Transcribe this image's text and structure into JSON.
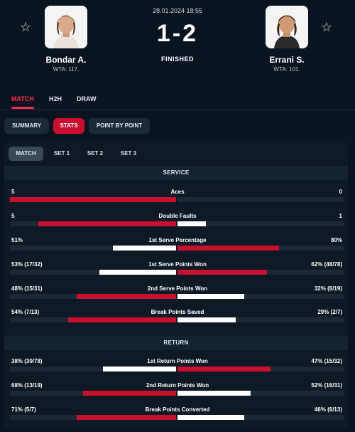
{
  "match": {
    "date": "28.01.2024 18:55",
    "score": "1-2",
    "status": "FINISHED",
    "home": {
      "name": "Bondar A.",
      "rank": "WTA: 117."
    },
    "away": {
      "name": "Errani S.",
      "rank": "WTA: 101."
    }
  },
  "icons": {
    "favorite": "star-outline-icon",
    "star_glyph": "☆"
  },
  "tabs": [
    {
      "label": "MATCH",
      "active": true
    },
    {
      "label": "H2H",
      "active": false
    },
    {
      "label": "DRAW",
      "active": false
    }
  ],
  "subtabs": [
    {
      "label": "SUMMARY",
      "active": false
    },
    {
      "label": "STATS",
      "active": true
    },
    {
      "label": "POINT BY POINT",
      "active": false
    }
  ],
  "settabs": [
    {
      "label": "MATCH",
      "active": true
    },
    {
      "label": "SET 1",
      "active": false
    },
    {
      "label": "SET 2",
      "active": false
    },
    {
      "label": "SET 3",
      "active": false
    }
  ],
  "colors": {
    "accent": "#c8102e",
    "winner_bar": "#c8102e",
    "other_bar": "#ffffff",
    "background": "#0a1420"
  },
  "sections": [
    {
      "title": "SERVICE",
      "stats": [
        {
          "name": "Aces",
          "home": "5",
          "away": "0",
          "home_frac": 1.0,
          "away_frac": 0.0,
          "leader": "home"
        },
        {
          "name": "Double Faults",
          "home": "5",
          "away": "1",
          "home_frac": 0.83,
          "away_frac": 0.17,
          "leader": "home"
        },
        {
          "name": "1st Serve Percentage",
          "home": "51%",
          "away": "80%",
          "home_frac": 0.38,
          "away_frac": 0.61,
          "leader": "away"
        },
        {
          "name": "1st Serve Points Won",
          "home": "53% (17/32)",
          "away": "62% (48/78)",
          "home_frac": 0.46,
          "away_frac": 0.54,
          "leader": "away"
        },
        {
          "name": "2nd Serve Points Won",
          "home": "48% (15/31)",
          "away": "32% (6/19)",
          "home_frac": 0.6,
          "away_frac": 0.4,
          "leader": "home"
        },
        {
          "name": "Break Points Saved",
          "home": "54% (7/13)",
          "away": "29% (2/7)",
          "home_frac": 0.65,
          "away_frac": 0.35,
          "leader": "home"
        }
      ]
    },
    {
      "title": "RETURN",
      "stats": [
        {
          "name": "1st Return Points Won",
          "home": "38% (30/78)",
          "away": "47% (15/32)",
          "home_frac": 0.44,
          "away_frac": 0.56,
          "leader": "away"
        },
        {
          "name": "2nd Return Points Won",
          "home": "68% (13/19)",
          "away": "52% (16/31)",
          "home_frac": 0.56,
          "away_frac": 0.44,
          "leader": "home"
        },
        {
          "name": "Break Points Converted",
          "home": "71% (5/7)",
          "away": "46% (6/13)",
          "home_frac": 0.6,
          "away_frac": 0.4,
          "leader": "home"
        }
      ]
    }
  ]
}
